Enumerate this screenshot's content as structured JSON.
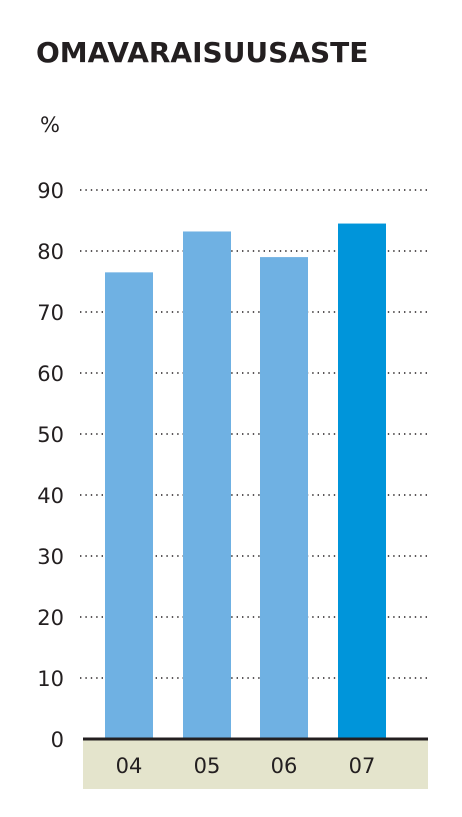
{
  "chart_data": {
    "type": "bar",
    "title": "OMAVARAISUUSASTE",
    "unit": "%",
    "categories": [
      "04",
      "05",
      "06",
      "07"
    ],
    "values": [
      76.5,
      83.2,
      79,
      84.5
    ],
    "highlight_index": 3,
    "ylim": [
      0,
      90
    ],
    "yticks": [
      0,
      10,
      20,
      30,
      40,
      50,
      60,
      70,
      80,
      90
    ],
    "grid": true,
    "colors": {
      "bar": "#6fb1e3",
      "bar_highlight": "#0095da",
      "axis_band": "#e4e4cc",
      "text": "#231f20"
    }
  }
}
